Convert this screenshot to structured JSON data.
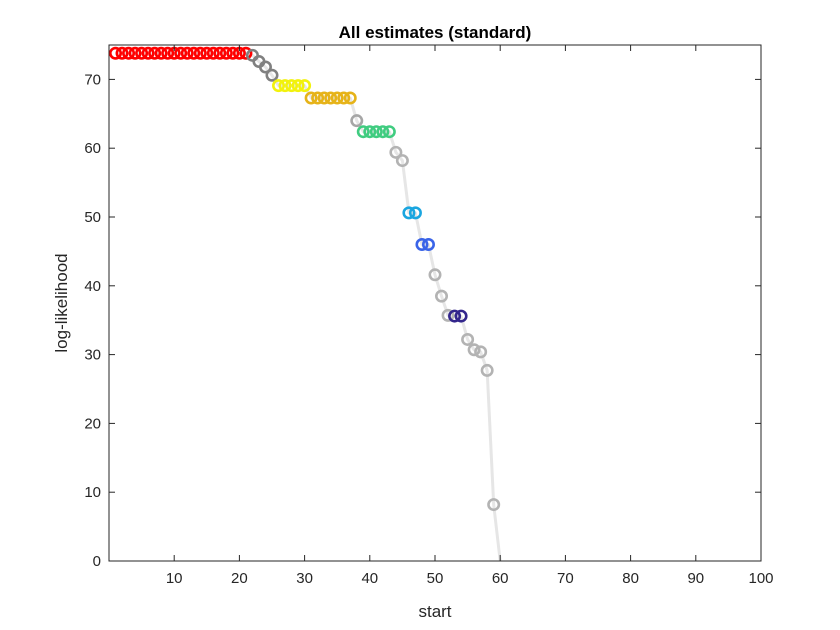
{
  "chart_data": {
    "type": "scatter",
    "title": "All estimates (standard)",
    "xlabel": "start",
    "ylabel": "log-likelihood",
    "xlim": [
      0,
      100
    ],
    "ylim": [
      0,
      75
    ],
    "xticks": [
      "10",
      "20",
      "30",
      "40",
      "50",
      "60",
      "70",
      "80",
      "90",
      "100"
    ],
    "yticks": [
      "0",
      "10",
      "20",
      "30",
      "40",
      "50",
      "60",
      "70"
    ],
    "grid": false,
    "legend": "none",
    "line": {
      "color": "#e6e6e6",
      "points": [
        [
          1,
          73.8
        ],
        [
          21,
          73.8
        ],
        [
          22,
          73.5
        ],
        [
          23,
          72.6
        ],
        [
          24,
          71.8
        ],
        [
          25,
          70.6
        ],
        [
          26,
          69.1
        ],
        [
          30,
          69.1
        ],
        [
          31,
          67.3
        ],
        [
          37,
          67.3
        ],
        [
          38,
          64.0
        ],
        [
          39,
          62.4
        ],
        [
          43,
          62.4
        ],
        [
          44,
          59.4
        ],
        [
          45,
          58.2
        ],
        [
          46,
          50.6
        ],
        [
          47,
          50.6
        ],
        [
          48,
          46.0
        ],
        [
          49,
          46.0
        ],
        [
          50,
          41.6
        ],
        [
          51,
          38.5
        ],
        [
          52,
          35.7
        ],
        [
          53,
          35.6
        ],
        [
          54,
          35.6
        ],
        [
          55,
          32.2
        ],
        [
          56,
          30.7
        ],
        [
          57,
          30.4
        ],
        [
          58,
          27.7
        ],
        [
          59,
          8.2
        ],
        [
          60,
          0
        ]
      ]
    },
    "series": [
      {
        "color": "#ff0000",
        "x": [
          1,
          2,
          3,
          4,
          5,
          6,
          7,
          8,
          9,
          10,
          11,
          12,
          13,
          14,
          15,
          16,
          17,
          18,
          19,
          20,
          21
        ],
        "y": [
          73.8,
          73.8,
          73.8,
          73.8,
          73.8,
          73.8,
          73.8,
          73.8,
          73.8,
          73.8,
          73.8,
          73.8,
          73.8,
          73.8,
          73.8,
          73.8,
          73.8,
          73.8,
          73.8,
          73.8,
          73.8
        ]
      },
      {
        "color": "#808080",
        "x": [
          22,
          23,
          24,
          25
        ],
        "y": [
          73.5,
          72.6,
          71.8,
          70.6
        ]
      },
      {
        "color": "#f2f20d",
        "x": [
          26,
          27,
          28,
          29,
          30
        ],
        "y": [
          69.1,
          69.1,
          69.1,
          69.1,
          69.1
        ]
      },
      {
        "color": "#e6b319",
        "x": [
          31,
          32,
          33,
          34,
          35,
          36,
          37
        ],
        "y": [
          67.3,
          67.3,
          67.3,
          67.3,
          67.3,
          67.3,
          67.3
        ]
      },
      {
        "color": "#a6a6a6",
        "x": [
          38
        ],
        "y": [
          64.0
        ]
      },
      {
        "color": "#40cc80",
        "x": [
          39,
          40,
          41,
          42,
          43
        ],
        "y": [
          62.4,
          62.4,
          62.4,
          62.4,
          62.4
        ]
      },
      {
        "color": "#b3b3b3",
        "x": [
          44,
          45
        ],
        "y": [
          59.4,
          58.2
        ]
      },
      {
        "color": "#1aa6e0",
        "x": [
          46,
          47
        ],
        "y": [
          50.6,
          50.6
        ]
      },
      {
        "color": "#3a64e8",
        "x": [
          48,
          49
        ],
        "y": [
          46.0,
          46.0
        ]
      },
      {
        "color": "#b3b3b3",
        "x": [
          50,
          51,
          52
        ],
        "y": [
          41.6,
          38.5,
          35.7
        ]
      },
      {
        "color": "#33268c",
        "x": [
          53,
          54
        ],
        "y": [
          35.6,
          35.6
        ]
      },
      {
        "color": "#b3b3b3",
        "x": [
          55,
          56,
          57,
          58,
          59
        ],
        "y": [
          32.2,
          30.7,
          30.4,
          27.7,
          8.2
        ]
      }
    ]
  }
}
